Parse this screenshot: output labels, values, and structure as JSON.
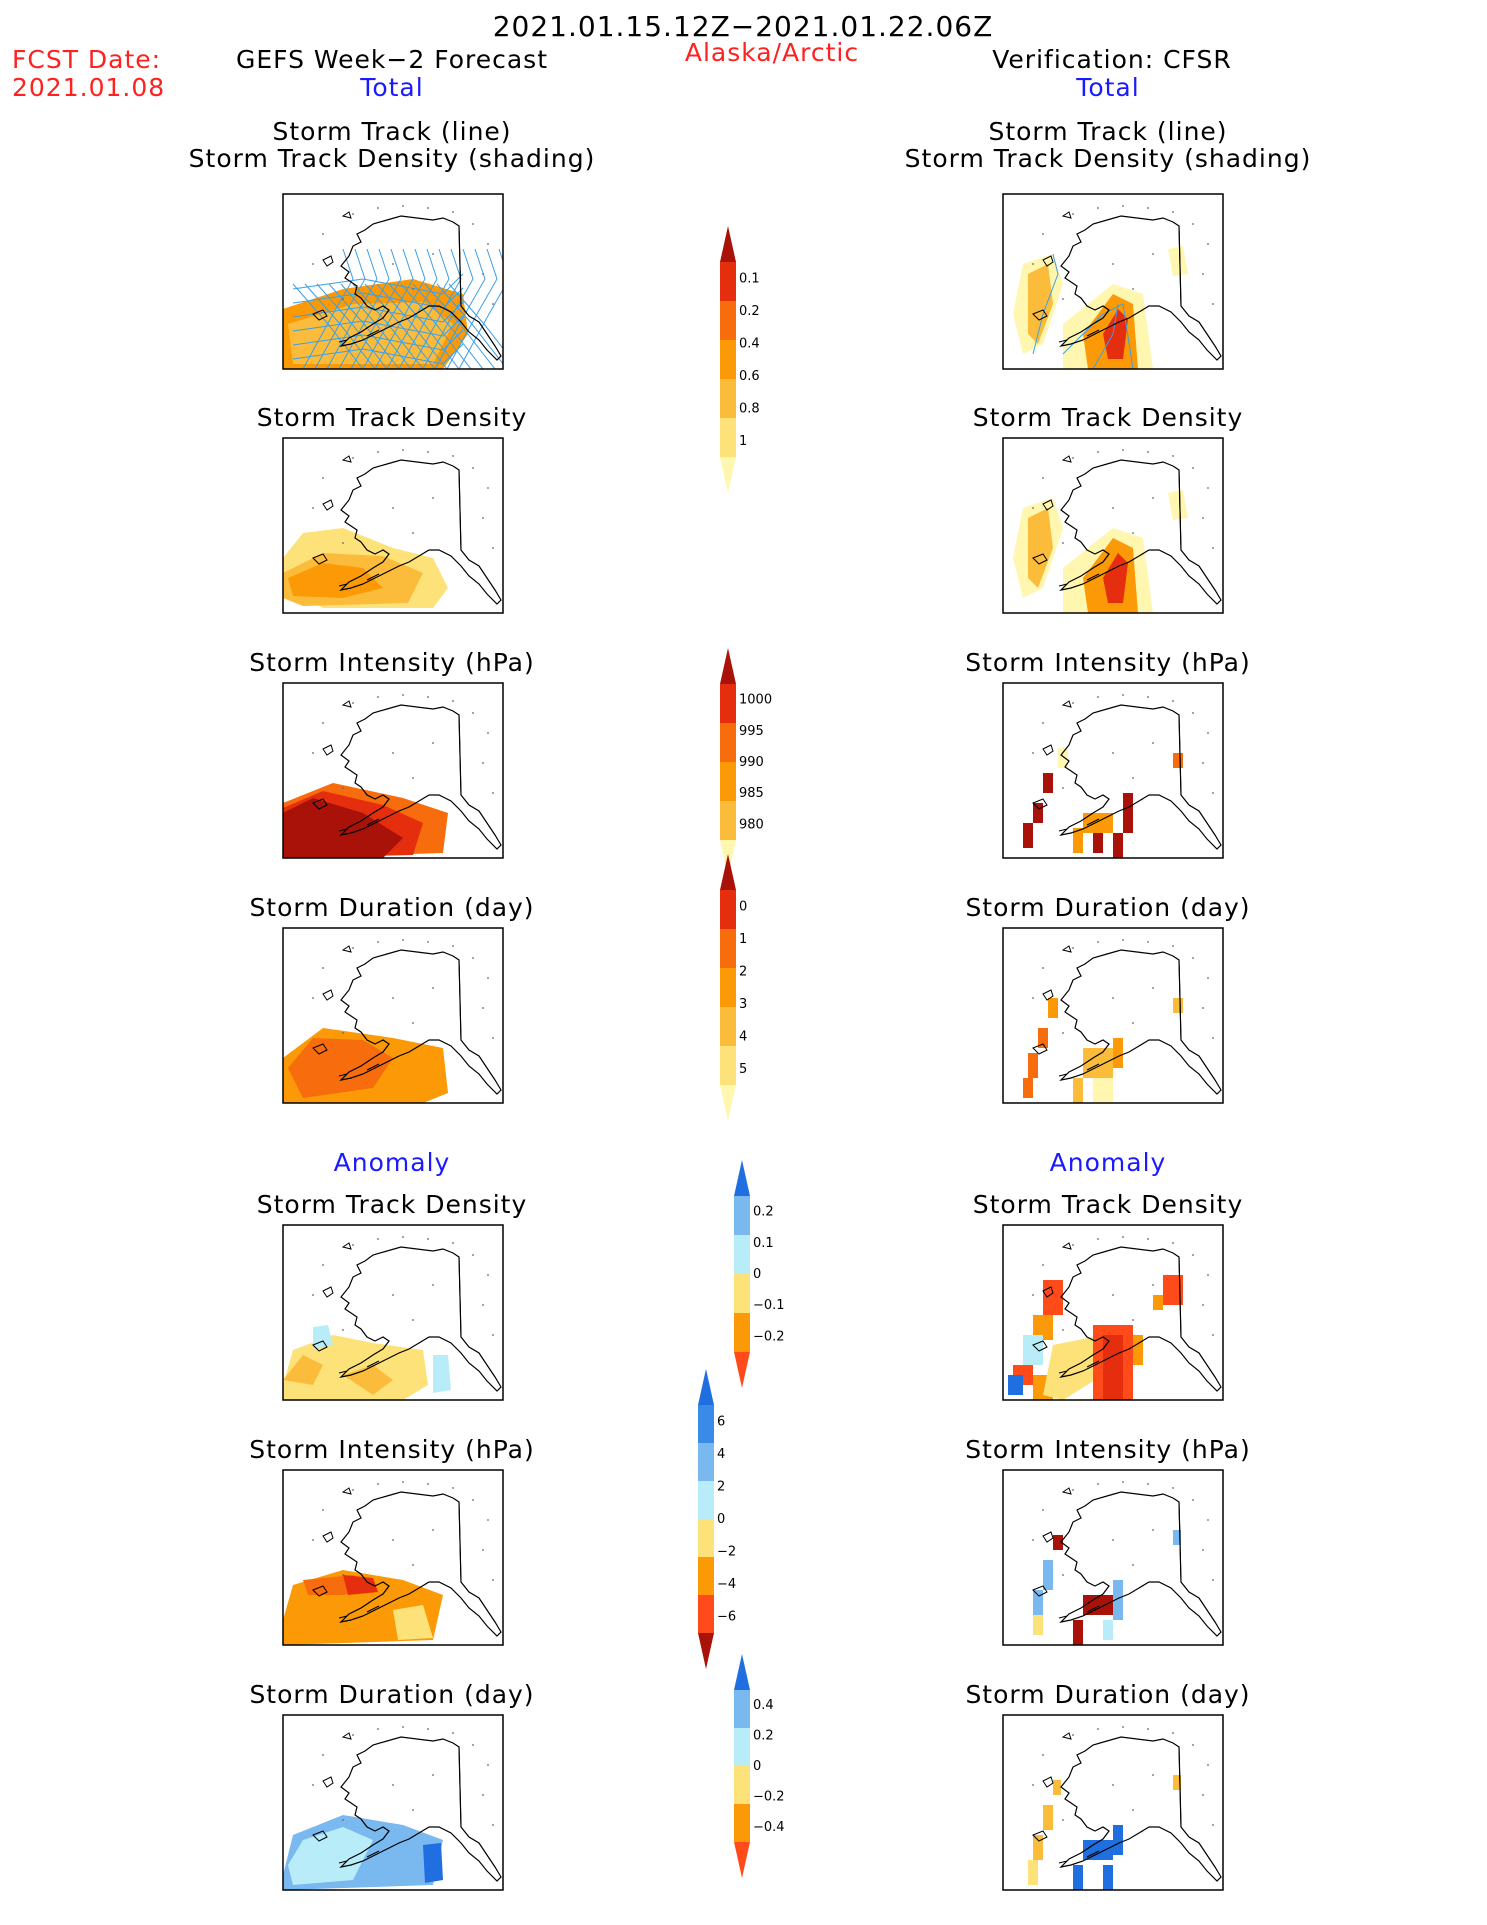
{
  "header": {
    "date_range": "2021.01.15.12Z−2021.01.22.06Z",
    "fcst_label": "FCST Date:",
    "fcst_date": "2021.01.08",
    "forecast_title": "GEFS Week−2 Forecast",
    "region": "Alaska/Arctic",
    "verification_title": "Verification: CFSR"
  },
  "sections": {
    "total": "Total",
    "anomaly": "Anomaly"
  },
  "panel_titles": {
    "track_line": "Storm Track (line)",
    "track_shading": "Storm Track Density (shading)",
    "density": "Storm Track Density",
    "intensity": "Storm Intensity (hPa)",
    "duration": "Storm Duration (day)"
  },
  "colorbars": [
    {
      "id": "density",
      "labels": [
        "0.1",
        "0.2",
        "0.4",
        "0.6",
        "0.8",
        "1"
      ],
      "colors": [
        "#fff7b0",
        "#fde27a",
        "#fbbc3c",
        "#fb9a06",
        "#f76c0c",
        "#e52e0e",
        "#a81208"
      ]
    },
    {
      "id": "intensity",
      "labels": [
        "1000",
        "995",
        "990",
        "985",
        "980"
      ],
      "colors": [
        "#fff7b0",
        "#fbbc3c",
        "#fb9a06",
        "#f76c0c",
        "#e52e0e",
        "#a81208"
      ]
    },
    {
      "id": "duration",
      "labels": [
        "0",
        "1",
        "2",
        "3",
        "4",
        "5"
      ],
      "colors": [
        "#fff7b0",
        "#fde27a",
        "#fbbc3c",
        "#fb9a06",
        "#f76c0c",
        "#e52e0e",
        "#a81208"
      ]
    },
    {
      "id": "anom_density",
      "labels": [
        "0.2",
        "0.1",
        "0",
        "−0.1",
        "−0.2"
      ],
      "colors": [
        "#ff4a1a",
        "#fb9a06",
        "#fde27a",
        "#b8ecf8",
        "#7ab8f0",
        "#1f6fe0"
      ]
    },
    {
      "id": "anom_intensity",
      "labels": [
        "6",
        "4",
        "2",
        "0",
        "−2",
        "−4",
        "−6"
      ],
      "colors": [
        "#a81208",
        "#ff4a1a",
        "#fb9a06",
        "#fde27a",
        "#b8ecf8",
        "#7ab8f0",
        "#3a8ae8",
        "#1f6fe0"
      ]
    },
    {
      "id": "anom_duration",
      "labels": [
        "0.4",
        "0.2",
        "0",
        "−0.2",
        "−0.4"
      ],
      "colors": [
        "#ff4a1a",
        "#fb9a06",
        "#fde27a",
        "#b8ecf8",
        "#7ab8f0",
        "#1f6fe0"
      ]
    }
  ],
  "colors": {
    "title_red": "#ff2020",
    "title_blue": "#1a1aff",
    "track_line": "#3aa0e8"
  }
}
